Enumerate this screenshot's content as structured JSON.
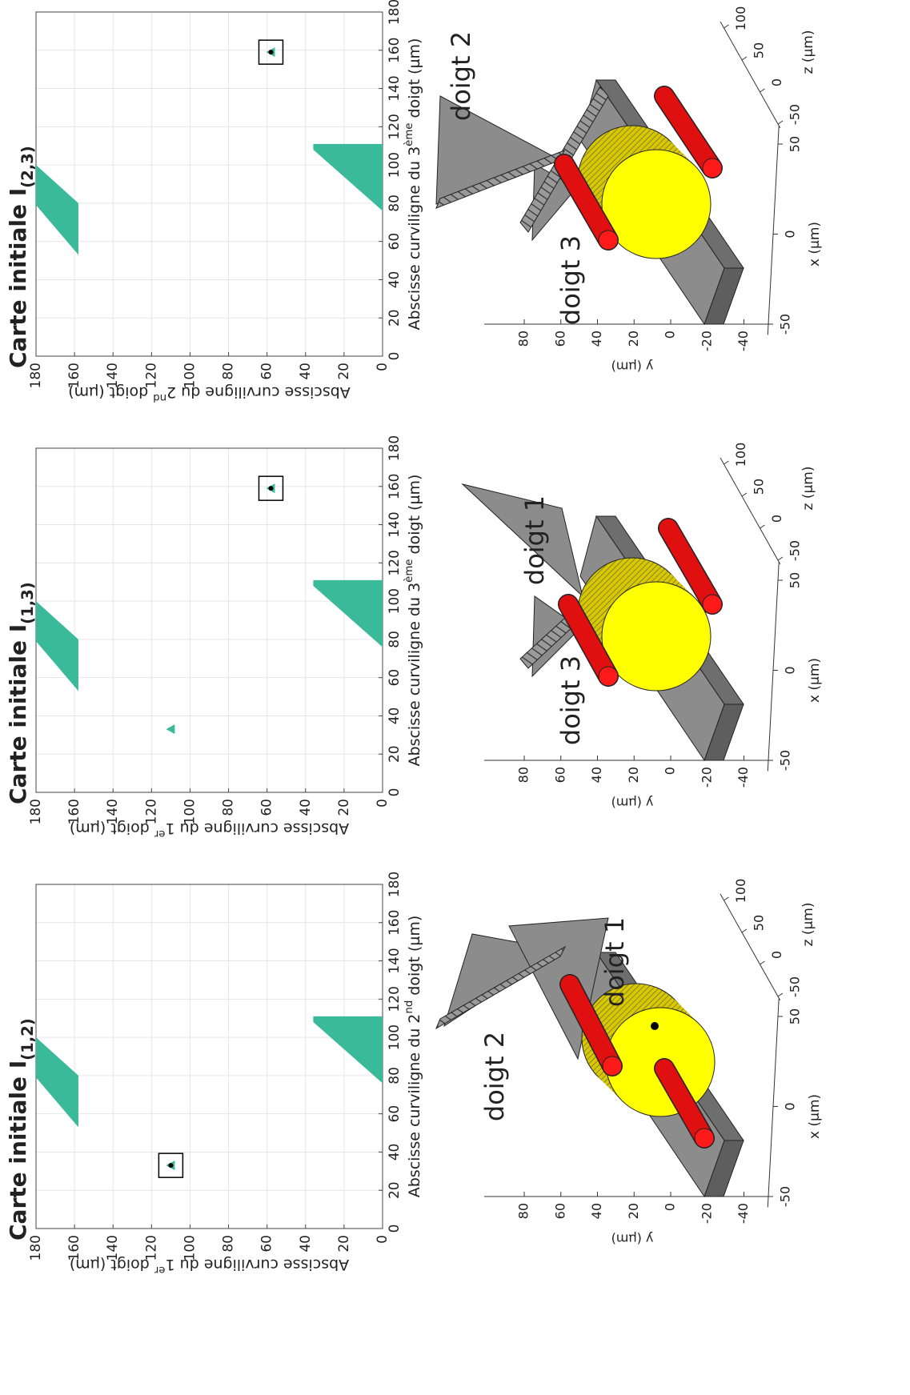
{
  "chart_data": [
    {
      "type": "region_map",
      "title": "Carte initiale I",
      "title_sub": "(1,2)",
      "xlabel": {
        "pre": "Abscisse curviligne du 2",
        "sup": "nd",
        "post": " doigt (µm)"
      },
      "ylabel": {
        "pre": "Abscisse curviligne du 1",
        "sup": "er",
        "post": " doigt (µm)"
      },
      "xlim": [
        0,
        180
      ],
      "ylim": [
        0,
        180
      ],
      "xticks": [
        0,
        20,
        40,
        60,
        80,
        100,
        120,
        140,
        160,
        180
      ],
      "yticks": [
        0,
        20,
        40,
        60,
        80,
        100,
        120,
        140,
        160,
        180
      ],
      "grid": true,
      "color": "#3bb99b",
      "regions": [
        {
          "x": [
            100,
            79,
            53,
            80
          ],
          "y": [
            180,
            180,
            158,
            158
          ]
        },
        {
          "x": [
            108,
            111,
            111,
            76
          ],
          "y": [
            36,
            36,
            0,
            0
          ]
        }
      ],
      "points": [
        {
          "x": 33,
          "y": 110,
          "boxed": true,
          "dot": true
        }
      ]
    },
    {
      "type": "region_map",
      "title": "Carte initiale I",
      "title_sub": "(1,3)",
      "xlabel": {
        "pre": "Abscisse curviligne du 3",
        "sup": "ème",
        "post": " doigt (µm)"
      },
      "ylabel": {
        "pre": "Abscisse curviligne du 1",
        "sup": "er",
        "post": " doigt (µm)"
      },
      "xlim": [
        0,
        180
      ],
      "ylim": [
        0,
        180
      ],
      "xticks": [
        0,
        20,
        40,
        60,
        80,
        100,
        120,
        140,
        160,
        180
      ],
      "yticks": [
        0,
        20,
        40,
        60,
        80,
        100,
        120,
        140,
        160,
        180
      ],
      "grid": true,
      "color": "#3bb99b",
      "regions": [
        {
          "x": [
            100,
            79,
            53,
            80
          ],
          "y": [
            180,
            180,
            158,
            158
          ]
        },
        {
          "x": [
            108,
            111,
            111,
            76
          ],
          "y": [
            36,
            36,
            0,
            0
          ]
        }
      ],
      "points": [
        {
          "x": 33,
          "y": 110,
          "boxed": false,
          "dot": false
        },
        {
          "x": 159,
          "y": 58,
          "boxed": true,
          "dot": true
        }
      ]
    },
    {
      "type": "region_map",
      "title": "Carte initiale I",
      "title_sub": "(2,3)",
      "xlabel": {
        "pre": "Abscisse curviligne du 3",
        "sup": "ème",
        "post": " doigt (µm)"
      },
      "ylabel": {
        "pre": "Abscisse curviligne du 2",
        "sup": "nd",
        "post": " doigt (µm)"
      },
      "xlim": [
        0,
        180
      ],
      "ylim": [
        0,
        180
      ],
      "xticks": [
        0,
        20,
        40,
        60,
        80,
        100,
        120,
        140,
        160,
        180
      ],
      "yticks": [
        0,
        20,
        40,
        60,
        80,
        100,
        120,
        140,
        160,
        180
      ],
      "grid": true,
      "color": "#3bb99b",
      "regions": [
        {
          "x": [
            100,
            79,
            53,
            80
          ],
          "y": [
            180,
            180,
            158,
            158
          ]
        },
        {
          "x": [
            108,
            111,
            111,
            76
          ],
          "y": [
            36,
            36,
            0,
            0
          ]
        }
      ],
      "points": [
        {
          "x": 159,
          "y": 58,
          "boxed": true,
          "dot": true
        }
      ]
    }
  ],
  "renderings": [
    {
      "labels": [
        "doigt 2",
        "doigt 1"
      ],
      "x_label": "x (µm)",
      "y_label": "y (µm)",
      "z_label": "z (µm)",
      "xticks": [
        -50,
        0,
        50
      ],
      "yticks": [
        80,
        60,
        40,
        20,
        0,
        -20,
        -40
      ],
      "zticks": [
        -50,
        0,
        50,
        100
      ]
    },
    {
      "labels": [
        "doigt 3",
        "doigt 1"
      ],
      "x_label": "x (µm)",
      "y_label": "y (µm)",
      "z_label": "z (µm)",
      "xticks": [
        -50,
        0,
        50
      ],
      "yticks": [
        80,
        60,
        40,
        20,
        0,
        -20,
        -40
      ],
      "zticks": [
        -50,
        0,
        50,
        100
      ]
    },
    {
      "labels": [
        "doigt 3",
        "doigt 2"
      ],
      "x_label": "x (µm)",
      "y_label": "y (µm)",
      "z_label": "z (µm)",
      "xticks": [
        -50,
        0,
        50
      ],
      "yticks": [
        80,
        60,
        40,
        20,
        0,
        -20,
        -40
      ],
      "zticks": [
        -50,
        0,
        50,
        100
      ]
    }
  ]
}
